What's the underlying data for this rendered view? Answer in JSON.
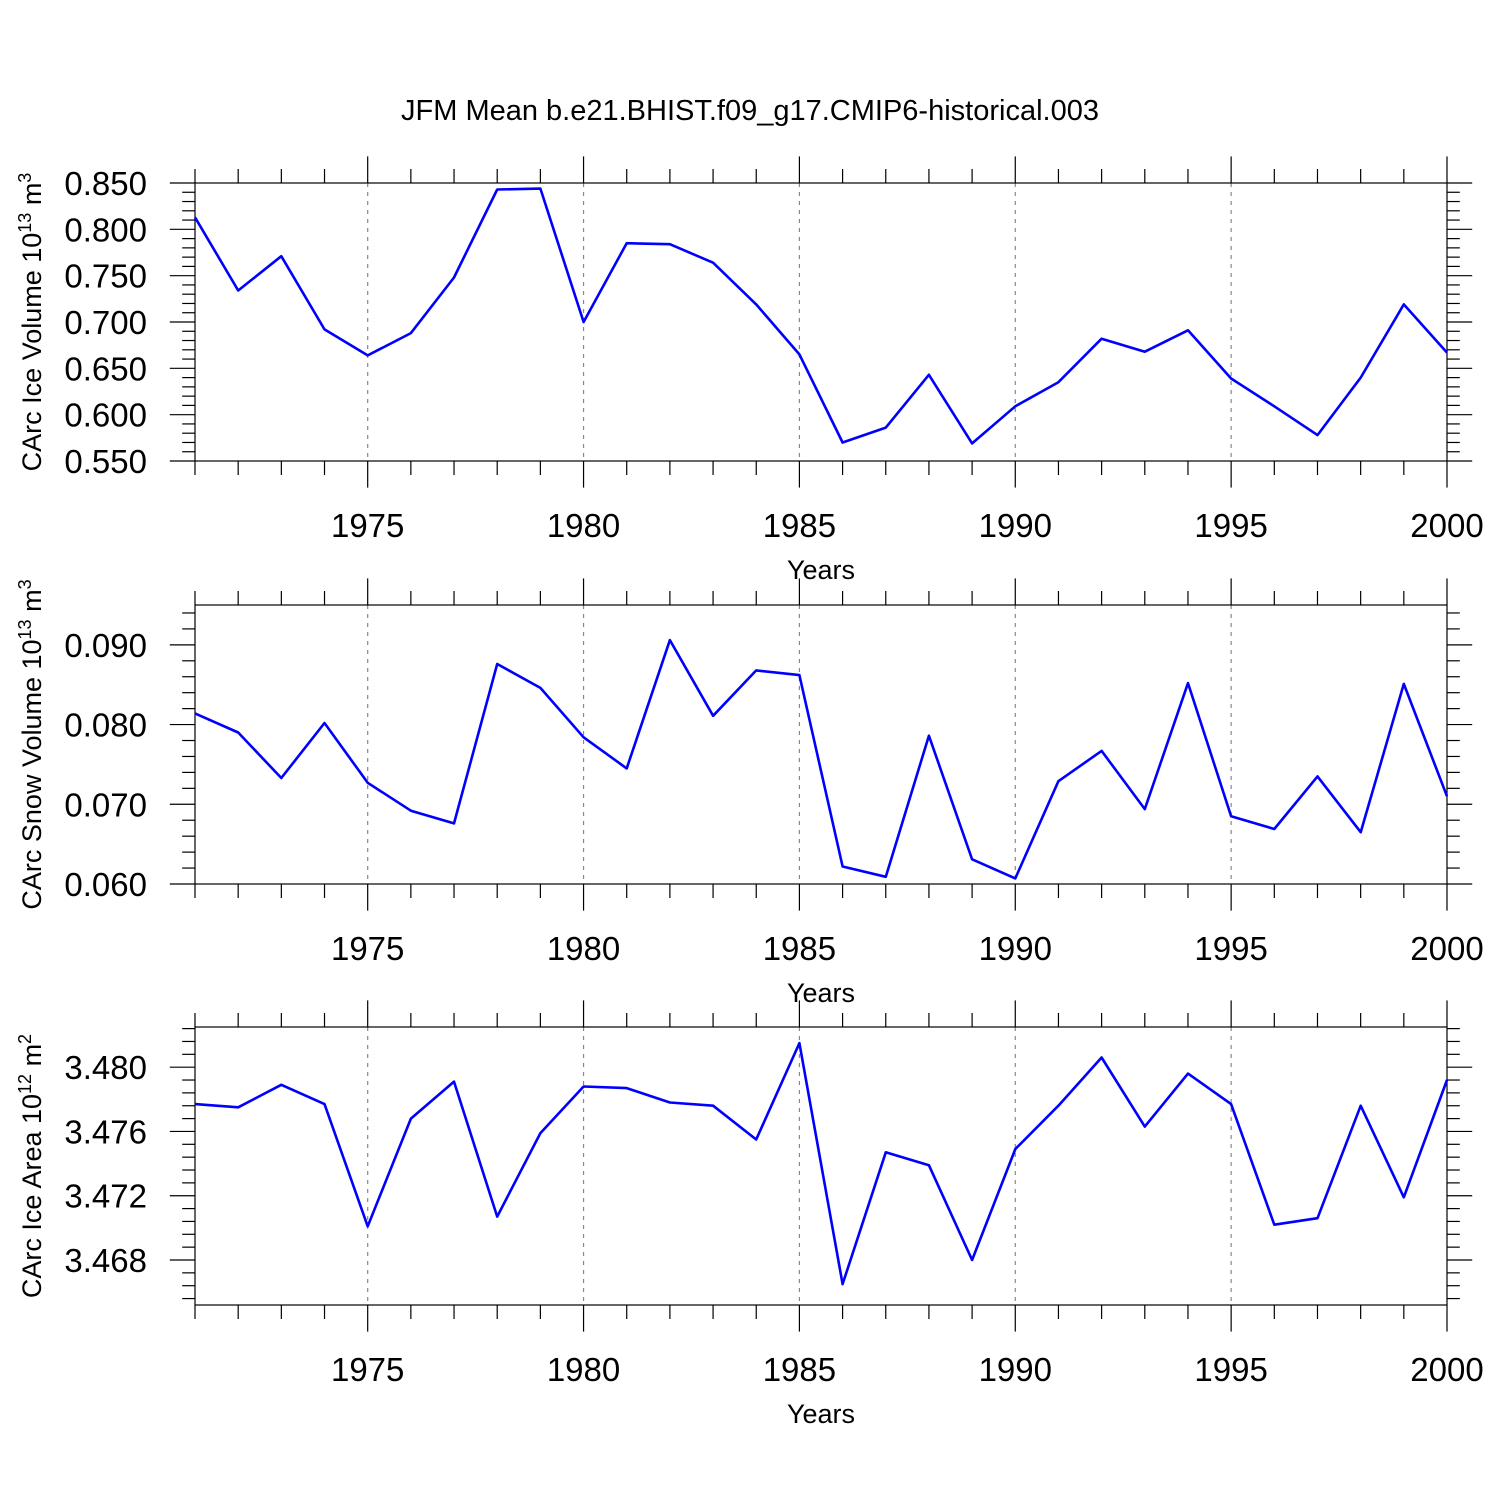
{
  "chart_data": [
    {
      "type": "line",
      "title": "JFM Mean b.e21.BHIST.f09_g17.CMIP6-historical.003",
      "xlabel": "Years",
      "ylabel": "CArc Ice Volume 10",
      "ylabel_exp": "13",
      "ylabel_unit": " m",
      "ylabel_unit_exp": "3",
      "xlim": [
        1971,
        2000
      ],
      "ylim": [
        0.55,
        0.85
      ],
      "yticks": [
        0.55,
        0.6,
        0.65,
        0.7,
        0.75,
        0.8,
        0.85
      ],
      "ytick_labels": [
        "0.550",
        "0.600",
        "0.650",
        "0.700",
        "0.750",
        "0.800",
        "0.850"
      ],
      "yminor": 0.01,
      "xticks": [
        1975,
        1980,
        1985,
        1990,
        1995,
        2000
      ],
      "xtick_labels": [
        "1975",
        "1980",
        "1985",
        "1990",
        "1995",
        "2000"
      ],
      "grid": "vertical-dashed",
      "x": [
        1971,
        1972,
        1973,
        1974,
        1975,
        1976,
        1977,
        1978,
        1979,
        1980,
        1981,
        1982,
        1983,
        1984,
        1985,
        1986,
        1987,
        1988,
        1989,
        1990,
        1991,
        1992,
        1993,
        1994,
        1995,
        1996,
        1997,
        1998,
        1999,
        2000
      ],
      "series": [
        {
          "name": "CArc Ice Volume",
          "color": "#0000ff",
          "values": [
            0.813,
            0.734,
            0.771,
            0.692,
            0.664,
            0.688,
            0.748,
            0.843,
            0.844,
            0.7,
            0.785,
            0.784,
            0.764,
            0.719,
            0.665,
            0.57,
            0.586,
            0.643,
            0.569,
            0.609,
            0.635,
            0.682,
            0.668,
            0.691,
            0.639,
            0.609,
            0.578,
            0.64,
            0.719,
            0.667
          ]
        }
      ]
    },
    {
      "type": "line",
      "title": "",
      "xlabel": "Years",
      "ylabel": "CArc Snow Volume 10",
      "ylabel_exp": "13",
      "ylabel_unit": " m",
      "ylabel_unit_exp": "3",
      "xlim": [
        1971,
        2000
      ],
      "ylim": [
        0.06,
        0.095
      ],
      "yticks": [
        0.06,
        0.07,
        0.08,
        0.09
      ],
      "ytick_labels": [
        "0.060",
        "0.070",
        "0.080",
        "0.090"
      ],
      "yminor": 0.002,
      "xticks": [
        1975,
        1980,
        1985,
        1990,
        1995,
        2000
      ],
      "xtick_labels": [
        "1975",
        "1980",
        "1985",
        "1990",
        "1995",
        "2000"
      ],
      "grid": "vertical-dashed",
      "x": [
        1971,
        1972,
        1973,
        1974,
        1975,
        1976,
        1977,
        1978,
        1979,
        1980,
        1981,
        1982,
        1983,
        1984,
        1985,
        1986,
        1987,
        1988,
        1989,
        1990,
        1991,
        1992,
        1993,
        1994,
        1995,
        1996,
        1997,
        1998,
        1999,
        2000
      ],
      "series": [
        {
          "name": "CArc Snow Volume",
          "color": "#0000ff",
          "values": [
            0.0814,
            0.079,
            0.0733,
            0.0802,
            0.0727,
            0.0692,
            0.0676,
            0.0876,
            0.0846,
            0.0784,
            0.0745,
            0.0906,
            0.0811,
            0.0868,
            0.0862,
            0.0622,
            0.0609,
            0.0786,
            0.0631,
            0.0607,
            0.0729,
            0.0767,
            0.0694,
            0.0852,
            0.0685,
            0.0669,
            0.0735,
            0.0665,
            0.0851,
            0.071
          ]
        }
      ]
    },
    {
      "type": "line",
      "title": "",
      "xlabel": "Years",
      "ylabel": "CArc Ice Area 10",
      "ylabel_exp": "12",
      "ylabel_unit": " m",
      "ylabel_unit_exp": "2",
      "xlim": [
        1971,
        2000
      ],
      "ylim": [
        3.4652,
        3.4825
      ],
      "yticks": [
        3.468,
        3.472,
        3.476,
        3.48
      ],
      "ytick_labels": [
        "3.468",
        "3.472",
        "3.476",
        "3.480"
      ],
      "yminor": 0.0008,
      "xticks": [
        1975,
        1980,
        1985,
        1990,
        1995,
        2000
      ],
      "xtick_labels": [
        "1975",
        "1980",
        "1985",
        "1990",
        "1995",
        "2000"
      ],
      "grid": "vertical-dashed",
      "x": [
        1971,
        1972,
        1973,
        1974,
        1975,
        1976,
        1977,
        1978,
        1979,
        1980,
        1981,
        1982,
        1983,
        1984,
        1985,
        1986,
        1987,
        1988,
        1989,
        1990,
        1991,
        1992,
        1993,
        1994,
        1995,
        1996,
        1997,
        1998,
        1999,
        2000
      ],
      "series": [
        {
          "name": "CArc Ice Area",
          "color": "#0000ff",
          "values": [
            3.4777,
            3.4775,
            3.4789,
            3.4777,
            3.4701,
            3.4768,
            3.4791,
            3.4707,
            3.4759,
            3.4788,
            3.4787,
            3.4778,
            3.4776,
            3.4755,
            3.4815,
            3.4665,
            3.4747,
            3.4739,
            3.468,
            3.4749,
            3.4776,
            3.4806,
            3.4763,
            3.4796,
            3.4777,
            3.4702,
            3.4706,
            3.4776,
            3.4719,
            3.4792
          ]
        }
      ]
    }
  ]
}
